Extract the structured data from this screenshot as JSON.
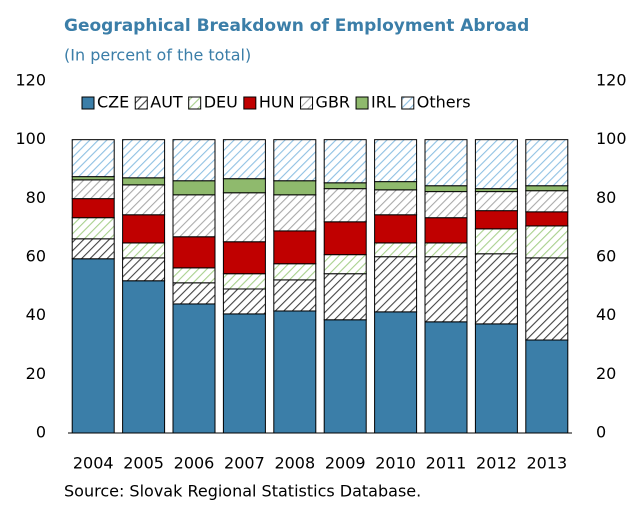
{
  "chart_data": {
    "type": "stacked_bar",
    "title": "Geographical Breakdown of Employment Abroad",
    "subtitle": "(In percent of the total)",
    "source": "Source: Slovak Regional Statistics Database.",
    "categories": [
      "2004",
      "2005",
      "2006",
      "2007",
      "2008",
      "2009",
      "2010",
      "2011",
      "2012",
      "2013"
    ],
    "series": [
      {
        "name": "CZE",
        "color": "#3b7ea8",
        "hatch": false,
        "values": [
          59.4,
          51.9,
          44.0,
          40.6,
          41.6,
          38.6,
          41.3,
          37.9,
          37.2,
          31.7
        ]
      },
      {
        "name": "AUT",
        "color": "#444444",
        "hatch": true,
        "values": [
          6.8,
          7.8,
          7.2,
          8.5,
          10.6,
          15.7,
          18.8,
          22.2,
          23.9,
          28.0
        ]
      },
      {
        "name": "DEU",
        "color": "#a9d18e",
        "hatch": true,
        "values": [
          7.2,
          5.1,
          5.1,
          5.2,
          5.5,
          6.5,
          4.7,
          4.7,
          8.5,
          10.9
        ]
      },
      {
        "name": "HUN",
        "color": "#c00000",
        "hatch": false,
        "values": [
          6.5,
          9.6,
          10.6,
          10.9,
          11.2,
          11.2,
          9.6,
          8.6,
          6.2,
          4.8
        ]
      },
      {
        "name": "GBR",
        "color": "#aaaaaa",
        "hatch": true,
        "values": [
          6.4,
          10.2,
          14.3,
          16.7,
          12.3,
          11.3,
          8.5,
          8.9,
          6.5,
          7.2
        ]
      },
      {
        "name": "IRL",
        "color": "#8fba6d",
        "hatch": false,
        "values": [
          1.1,
          2.4,
          4.8,
          4.8,
          4.8,
          2.0,
          2.8,
          2.0,
          1.0,
          1.7
        ]
      },
      {
        "name": "Others",
        "color": "#8fc1e3",
        "hatch": true,
        "values": [
          12.6,
          13.0,
          14.0,
          13.3,
          14.0,
          14.7,
          14.3,
          15.7,
          16.7,
          15.7
        ]
      }
    ],
    "ylim": [
      0,
      120
    ],
    "yticks": [
      0,
      20,
      40,
      60,
      80,
      100,
      120
    ],
    "y2lim": [
      0,
      120
    ],
    "y2ticks": [
      0,
      20,
      40,
      60,
      80,
      100,
      120
    ],
    "legend": "top"
  }
}
